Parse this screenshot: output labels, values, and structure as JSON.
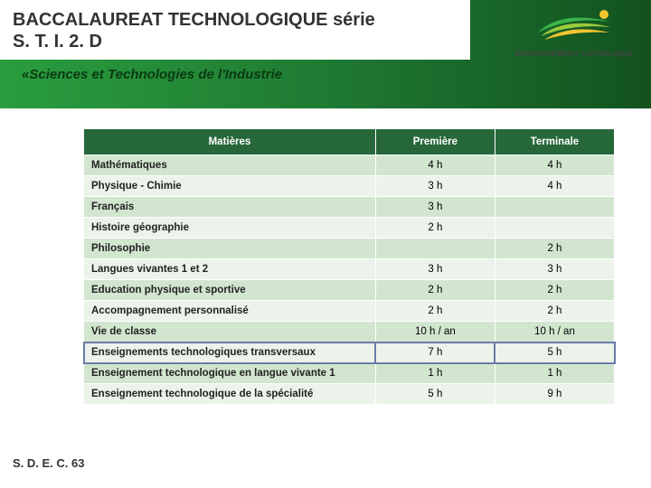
{
  "header": {
    "title_line1": "BACCALAUREAT TECHNOLOGIQUE série",
    "title_line2": "S. T. I. 2. D",
    "subtitle": "«Sciences et Technologies de l'Industrie",
    "logo_text": "ENSEIGNEMENT CATHOLIQUE"
  },
  "table": {
    "columns": [
      "Matières",
      "Première",
      "Terminale"
    ],
    "col_widths": [
      "55%",
      "22.5%",
      "22.5%"
    ],
    "header_bg": "#27683b",
    "header_fg": "#ffffff",
    "row_odd_bg": "#d2e6cf",
    "row_even_bg": "#ecf3ea",
    "highlight_border": "#6a7ba8",
    "rows": [
      {
        "label": "Mathématiques",
        "premiere": "4 h",
        "terminale": "4 h",
        "highlight": false
      },
      {
        "label": "Physique - Chimie",
        "premiere": "3 h",
        "terminale": "4 h",
        "highlight": false
      },
      {
        "label": "Français",
        "premiere": "3 h",
        "terminale": "",
        "highlight": false
      },
      {
        "label": "Histoire géographie",
        "premiere": "2 h",
        "terminale": "",
        "highlight": false
      },
      {
        "label": "Philosophie",
        "premiere": "",
        "terminale": "2 h",
        "highlight": false
      },
      {
        "label": "Langues vivantes 1 et 2",
        "premiere": "3 h",
        "terminale": "3 h",
        "highlight": false
      },
      {
        "label": "Education physique et sportive",
        "premiere": "2 h",
        "terminale": "2 h",
        "highlight": false
      },
      {
        "label": "Accompagnement personnalisé",
        "premiere": "2 h",
        "terminale": "2 h",
        "highlight": false
      },
      {
        "label": "Vie de classe",
        "premiere": "10 h / an",
        "terminale": "10 h / an",
        "highlight": false
      },
      {
        "label": "Enseignements technologiques transversaux",
        "premiere": "7 h",
        "terminale": "5 h",
        "highlight": true
      },
      {
        "label": "Enseignement technologique en langue vivante 1",
        "premiere": "1 h",
        "terminale": "1 h",
        "highlight": false
      },
      {
        "label": "Enseignement technologique de la spécialité",
        "premiere": "5 h",
        "terminale": "9 h",
        "highlight": false
      }
    ]
  },
  "footer": {
    "text": "S. D. E. C. 63"
  }
}
